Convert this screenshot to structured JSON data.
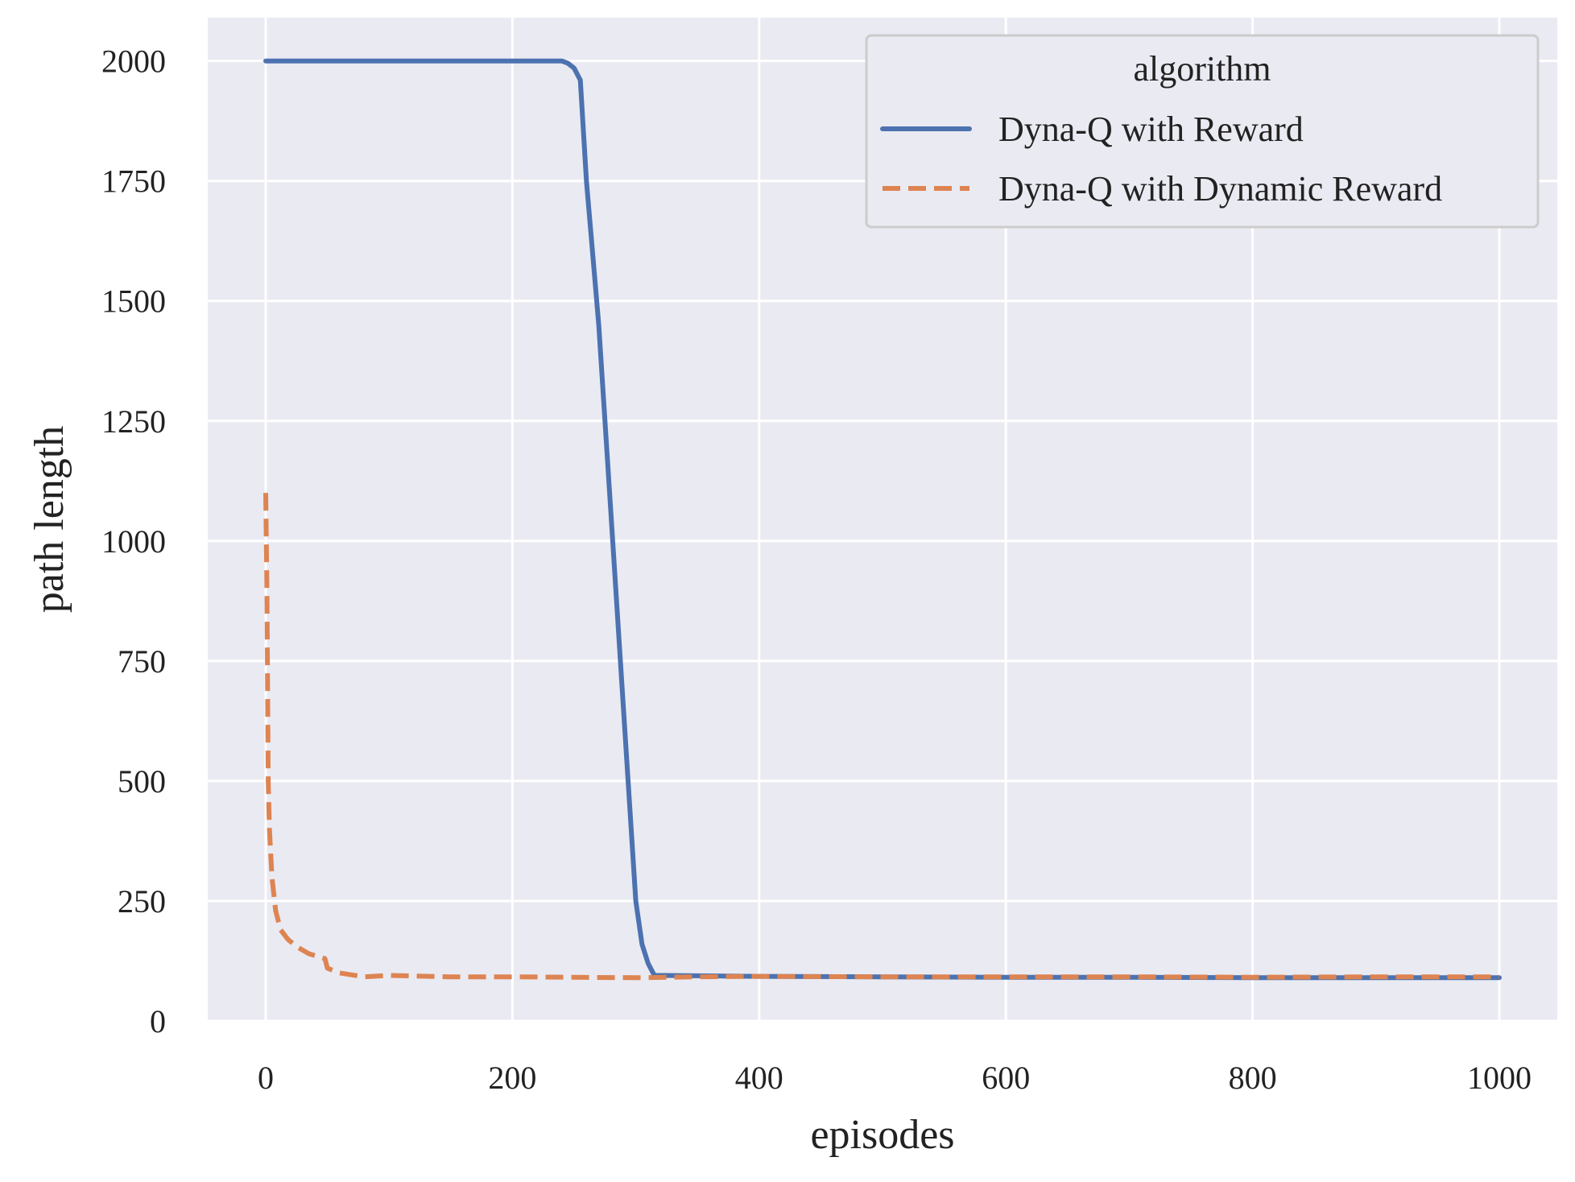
{
  "chart_data": {
    "type": "line",
    "xlabel": "episodes",
    "ylabel": "path length",
    "xlim": [
      -47,
      1047
    ],
    "ylim": [
      0,
      2090
    ],
    "xticks": [
      0,
      200,
      400,
      600,
      800,
      1000
    ],
    "yticks": [
      0,
      250,
      500,
      750,
      1000,
      1250,
      1500,
      1750,
      2000
    ],
    "grid": true,
    "background": "#eaeaf2",
    "legend": {
      "title": "algorithm",
      "position": "top-right"
    },
    "series": [
      {
        "name": "Dyna-Q with Reward",
        "color": "#4c72b0",
        "dash": "solid",
        "x": [
          0,
          100,
          200,
          240,
          245,
          250,
          255,
          260,
          270,
          280,
          290,
          300,
          305,
          310,
          315,
          400,
          500,
          600,
          700,
          800,
          900,
          1000
        ],
        "y": [
          2000,
          2000,
          2000,
          2000,
          1995,
          1985,
          1960,
          1750,
          1450,
          1050,
          650,
          250,
          160,
          120,
          95,
          93,
          92,
          91,
          91,
          90,
          90,
          90
        ]
      },
      {
        "name": "Dyna-Q with Dynamic Reward",
        "color": "#dd8452",
        "dash": "dashed",
        "x": [
          0,
          1,
          2,
          3,
          5,
          8,
          12,
          18,
          25,
          35,
          48,
          50,
          60,
          80,
          100,
          150,
          200,
          300,
          350,
          400,
          500,
          600,
          700,
          800,
          900,
          1000
        ],
        "y": [
          1100,
          900,
          500,
          400,
          300,
          230,
          190,
          170,
          155,
          140,
          130,
          110,
          100,
          92,
          95,
          92,
          92,
          90,
          92,
          93,
          92,
          92,
          92,
          91,
          92,
          92
        ]
      }
    ]
  }
}
